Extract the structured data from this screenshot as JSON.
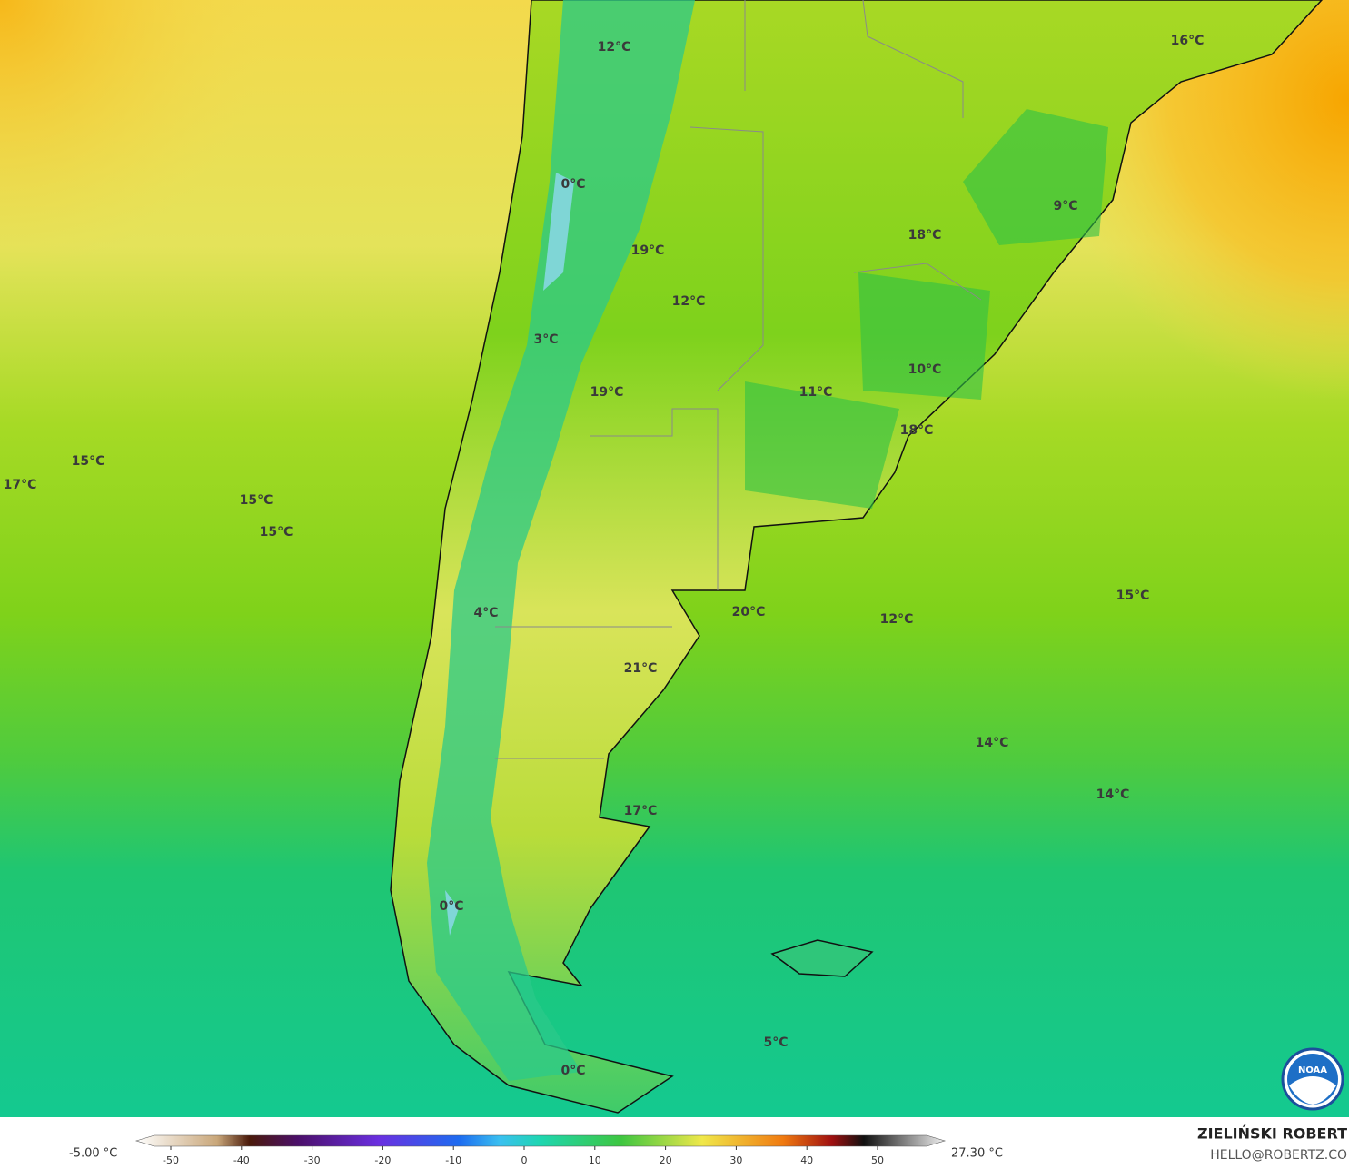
{
  "map": {
    "labels": [
      "12°C",
      "16°C",
      "0°C",
      "9°C",
      "18°C",
      "19°C",
      "12°C",
      "3°C",
      "10°C",
      "19°C",
      "11°C",
      "18°C",
      "15°C",
      "17°C",
      "15°C",
      "15°C",
      "15°C",
      "4°C",
      "20°C",
      "12°C",
      "21°C",
      "14°C",
      "14°C",
      "17°C",
      "0°C",
      "5°C",
      "0°C"
    ]
  },
  "colorbar": {
    "min_label": "-5.00 °C",
    "max_label": "27.30 °C",
    "ticks": [
      -50,
      -40,
      -30,
      -20,
      -10,
      0,
      10,
      20,
      30,
      40,
      50
    ]
  },
  "credit": {
    "name": "ZIELIŃSKI ROBERT",
    "contact": "HELLO@ROBERTZ.CO"
  },
  "logo": "NOAA"
}
